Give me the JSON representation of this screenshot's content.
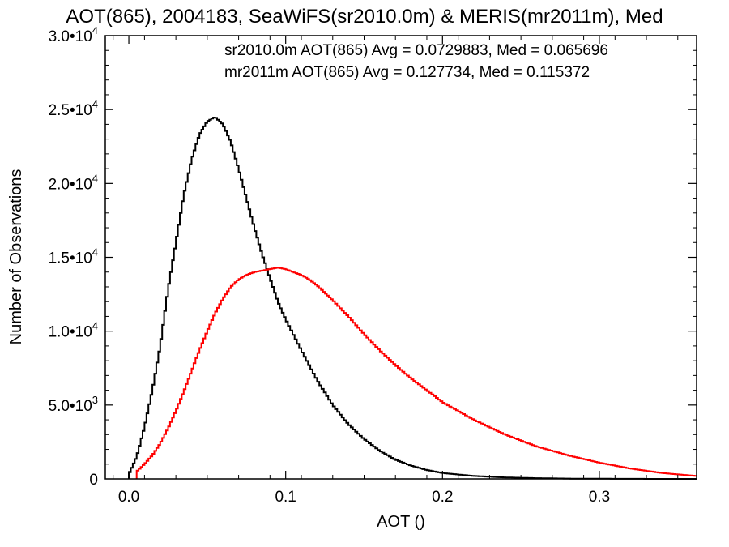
{
  "chart_data": {
    "type": "line",
    "title": "AOT(865), 2004183, SeaWiFS(sr2010.0m) & MERIS(mr2011m), Med",
    "xlabel": "AOT ()",
    "ylabel": "Number of Observations",
    "xlim": [
      -0.015,
      0.362
    ],
    "ylim": [
      0,
      30000
    ],
    "x_ticks": [
      {
        "value": 0.0,
        "label": "0.0"
      },
      {
        "value": 0.1,
        "label": "0.1"
      },
      {
        "value": 0.2,
        "label": "0.2"
      },
      {
        "value": 0.3,
        "label": "0.3"
      }
    ],
    "y_ticks": [
      {
        "value": 0,
        "mant": "0",
        "exp": ""
      },
      {
        "value": 5000,
        "mant": "5.0•10",
        "exp": "3"
      },
      {
        "value": 10000,
        "mant": "1.0•10",
        "exp": "4"
      },
      {
        "value": 15000,
        "mant": "1.5•10",
        "exp": "4"
      },
      {
        "value": 20000,
        "mant": "2.0•10",
        "exp": "4"
      },
      {
        "value": 25000,
        "mant": "2.5•10",
        "exp": "4"
      },
      {
        "value": 30000,
        "mant": "3.0•10",
        "exp": "4"
      }
    ],
    "grid": false,
    "legend": "top",
    "series": [
      {
        "name": "sr2010.0m AOT(865) Avg = 0.0729883, Med = 0.065696",
        "color": "#000000",
        "x": [
          0.0,
          0.005,
          0.01,
          0.015,
          0.02,
          0.025,
          0.03,
          0.035,
          0.04,
          0.045,
          0.05,
          0.055,
          0.06,
          0.065,
          0.07,
          0.075,
          0.08,
          0.085,
          0.09,
          0.095,
          0.1,
          0.11,
          0.12,
          0.13,
          0.14,
          0.15,
          0.16,
          0.17,
          0.18,
          0.19,
          0.2,
          0.22,
          0.24,
          0.26,
          0.28,
          0.3,
          0.32,
          0.34,
          0.362
        ],
        "y": [
          300,
          1500,
          3500,
          6000,
          9000,
          12800,
          16000,
          19200,
          21600,
          23300,
          24200,
          24500,
          24000,
          22800,
          21000,
          19000,
          17000,
          15200,
          13600,
          12000,
          10800,
          8700,
          6700,
          5000,
          3700,
          2700,
          1900,
          1300,
          900,
          600,
          400,
          200,
          100,
          50,
          20,
          10,
          5,
          0,
          0
        ]
      },
      {
        "name": "mr2011m AOT(865) Avg = 0.127734, Med = 0.115372",
        "color": "#ff0000",
        "x": [
          0.005,
          0.01,
          0.015,
          0.02,
          0.025,
          0.03,
          0.035,
          0.04,
          0.045,
          0.05,
          0.055,
          0.06,
          0.065,
          0.07,
          0.075,
          0.08,
          0.085,
          0.09,
          0.095,
          0.1,
          0.105,
          0.11,
          0.115,
          0.12,
          0.125,
          0.13,
          0.14,
          0.15,
          0.16,
          0.17,
          0.18,
          0.19,
          0.2,
          0.21,
          0.22,
          0.23,
          0.24,
          0.25,
          0.26,
          0.28,
          0.3,
          0.32,
          0.34,
          0.362
        ],
        "y": [
          500,
          1000,
          1600,
          2400,
          3400,
          4600,
          5900,
          7300,
          8700,
          10000,
          11200,
          12200,
          13000,
          13500,
          13800,
          14000,
          14100,
          14200,
          14300,
          14200,
          14000,
          13800,
          13500,
          13100,
          12600,
          12100,
          11000,
          9800,
          8700,
          7700,
          6800,
          6000,
          5200,
          4600,
          4000,
          3500,
          3000,
          2600,
          2200,
          1600,
          1100,
          700,
          400,
          200
        ]
      }
    ]
  }
}
